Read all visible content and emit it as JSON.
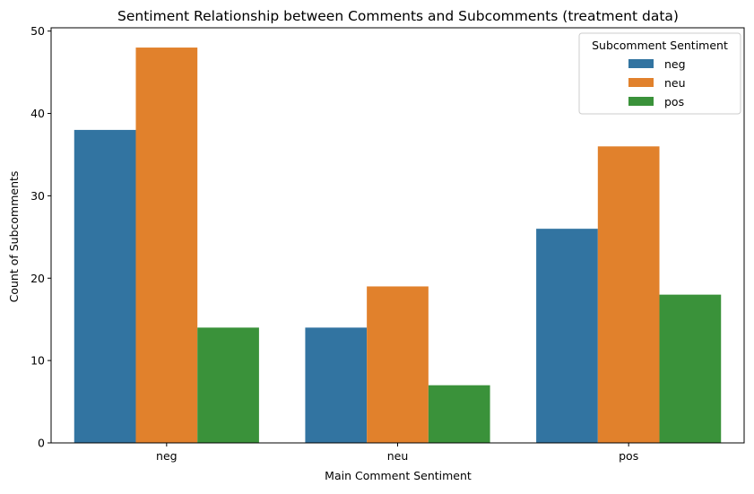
{
  "chart_data": {
    "type": "bar",
    "title": "Sentiment Relationship between Comments and Subcomments (treatment data)",
    "xlabel": "Main Comment Sentiment",
    "ylabel": "Count of Subcomments",
    "categories": [
      "neg",
      "neu",
      "pos"
    ],
    "series": [
      {
        "name": "neg",
        "values": [
          38,
          14,
          26
        ],
        "color": "#3274a1"
      },
      {
        "name": "neu",
        "values": [
          48,
          19,
          36
        ],
        "color": "#e1812c"
      },
      {
        "name": "pos",
        "values": [
          14,
          7,
          18
        ],
        "color": "#3a923a"
      }
    ],
    "ylim": [
      0,
      50.4
    ],
    "yticks": [
      0,
      10,
      20,
      30,
      40,
      50
    ],
    "grid": false,
    "legend": {
      "title": "Subcomment Sentiment",
      "placement": "top-right"
    }
  }
}
